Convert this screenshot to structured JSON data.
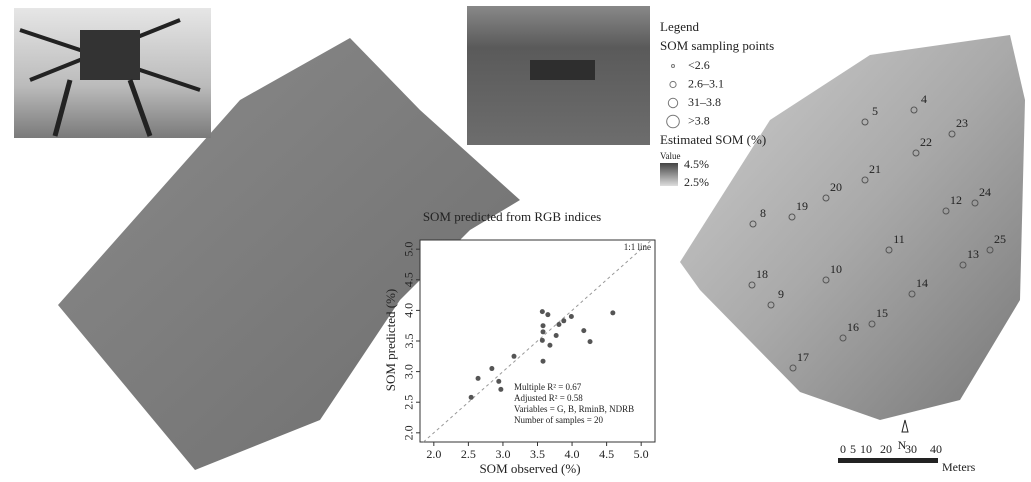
{
  "chart_data": {
    "type": "scatter",
    "title": "SOM predicted from RGB indices",
    "x_label": "SOM observed (%)",
    "y_label": "SOM predicted (%)",
    "x": [
      2.54,
      2.64,
      2.84,
      2.94,
      2.97,
      3.16,
      3.57,
      3.58,
      3.58,
      3.57,
      3.58,
      3.65,
      3.68,
      3.77,
      3.81,
      3.88,
      3.99,
      4.17,
      4.26,
      4.59
    ],
    "values": [
      2.58,
      2.89,
      3.05,
      2.84,
      2.71,
      3.25,
      3.98,
      3.75,
      3.65,
      3.51,
      3.17,
      3.93,
      3.43,
      3.59,
      3.77,
      3.83,
      3.9,
      3.67,
      3.49,
      3.96
    ],
    "color": "#555555",
    "xlim": [
      1.8,
      5.2
    ],
    "ylim": [
      1.85,
      5.15
    ],
    "xticks": [
      {
        "value": 2,
        "label": "2.0"
      },
      {
        "value": 2.5,
        "label": "2.5"
      },
      {
        "value": 3,
        "label": "3.0"
      },
      {
        "value": 3.5,
        "label": "3.5"
      },
      {
        "value": 4,
        "label": "4.0"
      },
      {
        "value": 4.5,
        "label": "4.5"
      },
      {
        "value": 5,
        "label": "5.0"
      }
    ],
    "yticks": [
      {
        "value": 2,
        "label": "2.0"
      },
      {
        "value": 2.5,
        "label": "2.5"
      },
      {
        "value": 3,
        "label": "3.0"
      },
      {
        "value": 3.5,
        "label": "3.5"
      },
      {
        "value": 4,
        "label": "4.0"
      },
      {
        "value": 4.5,
        "label": "4.5"
      },
      {
        "value": 5,
        "label": "5.0"
      }
    ],
    "annotations": [
      "1:1 line",
      "Multiple R² = 0.67",
      "Adjusted R² = 0.58",
      "Variables = G, B, RminB, NDRB",
      "Number of samples = 20"
    ]
  },
  "legend": {
    "title": "Legend",
    "points_title": "SOM sampling points",
    "points": [
      "<2.6",
      "2.6–3.1",
      "31–3.8",
      ">3.8"
    ],
    "raster_title": "Estimated SOM (%)",
    "raster_sub": "Value",
    "high": "4.5%",
    "low": "2.5%"
  },
  "map": {
    "points": [
      "4",
      "5",
      "23",
      "22",
      "21",
      "20",
      "19",
      "8",
      "12",
      "24",
      "25",
      "13",
      "11",
      "10",
      "18",
      "9",
      "14",
      "15",
      "16",
      "17"
    ],
    "north": "N",
    "scale": [
      "0",
      "5",
      "10",
      "20",
      "30",
      "40"
    ],
    "unit": "Meters"
  }
}
